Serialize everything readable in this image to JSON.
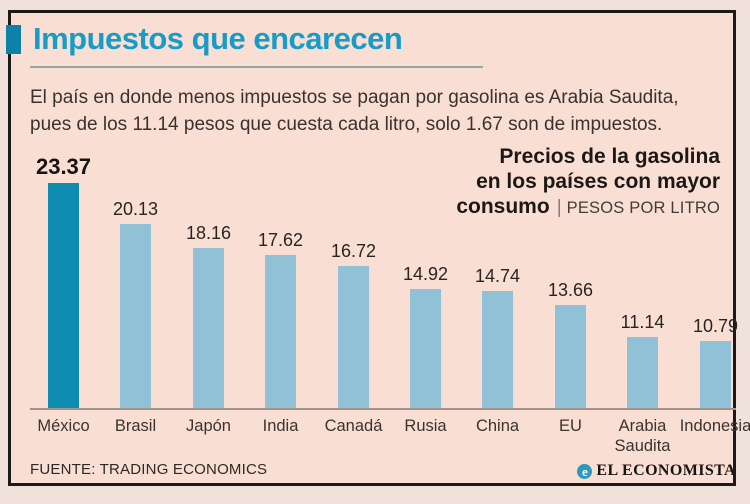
{
  "header": {
    "title": "Impuestos que encarecen",
    "lede_line1": "El país en donde menos impuestos se pagan por gasolina es Arabia Saudita,",
    "lede_line2": "pues de los 11.14 pesos que cuesta cada litro, solo 1.67 son de impuestos."
  },
  "chart_header": {
    "line1": "Precios de la gasolina",
    "line2": "en los países con mayor",
    "line3_bold": "consumo",
    "separator": "|",
    "unit": "PESOS POR LITRO"
  },
  "chart_data": {
    "type": "bar",
    "title": "Precios de la gasolina en los países con mayor consumo",
    "unit_label": "PESOS POR LITRO",
    "categories": [
      "México",
      "Brasil",
      "Japón",
      "India",
      "Canadá",
      "Rusia",
      "China",
      "EU",
      "Arabia Saudita",
      "Indonesia"
    ],
    "values": [
      23.37,
      20.13,
      18.16,
      17.62,
      16.72,
      14.92,
      14.74,
      13.66,
      11.14,
      10.79
    ],
    "value_labels": [
      "23.37",
      "20.13",
      "18.16",
      "17.62",
      "16.72",
      "14.92",
      "14.74",
      "13.66",
      "11.14",
      "10.79"
    ],
    "highlight_index": 0,
    "xlabel": "",
    "ylabel": "",
    "axis_display_min": 5.45,
    "axis_display_max": 23.37,
    "grid": false,
    "legend": "none"
  },
  "footer": {
    "source": "FUENTE: TRADING ECONOMICS",
    "brand": "EL ECONOMISTA",
    "brand_mark_glyph": "e"
  },
  "colors": {
    "accent_title": "#189cc6",
    "bar_highlight": "#0f8cb2",
    "bar": "#90c1d6",
    "inner_background": "#f8ded3",
    "outer_background": "#f0e2da",
    "frame_border": "#1c1a19",
    "title_rule": "#8fa8a4",
    "axis_line": "#a2938a",
    "text": "#3a322e"
  }
}
